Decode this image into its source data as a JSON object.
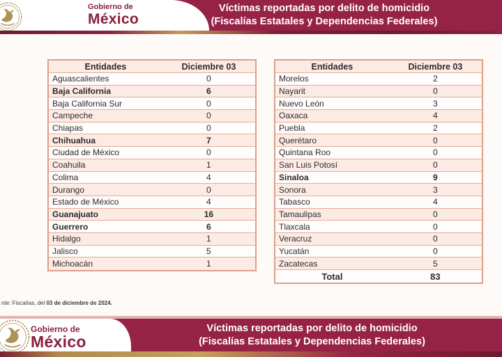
{
  "banner": {
    "logo_line1": "Gobierno de",
    "logo_line2": "México",
    "title_line1": "Víctimas reportadas por delito de homicidio",
    "title_line2": "(Fiscalías Estatales y Dependencias Federales)"
  },
  "table_headers": {
    "entity": "Entidades",
    "date": "Diciembre 03"
  },
  "left_table": {
    "rows": [
      {
        "name": "Aguascalientes",
        "value": "0",
        "bold": false
      },
      {
        "name": "Baja California",
        "value": "6",
        "bold": true
      },
      {
        "name": "Baja California Sur",
        "value": "0",
        "bold": false
      },
      {
        "name": "Campeche",
        "value": "0",
        "bold": false
      },
      {
        "name": "Chiapas",
        "value": "0",
        "bold": false
      },
      {
        "name": "Chihuahua",
        "value": "7",
        "bold": true
      },
      {
        "name": "Ciudad de México",
        "value": "0",
        "bold": false
      },
      {
        "name": "Coahuila",
        "value": "1",
        "bold": false
      },
      {
        "name": "Colima",
        "value": "4",
        "bold": false
      },
      {
        "name": "Durango",
        "value": "0",
        "bold": false
      },
      {
        "name": "Estado de México",
        "value": "4",
        "bold": false
      },
      {
        "name": "Guanajuato",
        "value": "16",
        "bold": true
      },
      {
        "name": "Guerrero",
        "value": "6",
        "bold": true
      },
      {
        "name": "Hidalgo",
        "value": "1",
        "bold": false
      },
      {
        "name": "Jalisco",
        "value": "5",
        "bold": false
      },
      {
        "name": "Michoacán",
        "value": "1",
        "bold": false
      }
    ]
  },
  "right_table": {
    "rows": [
      {
        "name": "Morelos",
        "value": "2",
        "bold": false
      },
      {
        "name": "Nayarit",
        "value": "0",
        "bold": false
      },
      {
        "name": "Nuevo León",
        "value": "3",
        "bold": false
      },
      {
        "name": "Oaxaca",
        "value": "4",
        "bold": false
      },
      {
        "name": "Puebla",
        "value": "2",
        "bold": false
      },
      {
        "name": "Querétaro",
        "value": "0",
        "bold": false
      },
      {
        "name": "Quintana Roo",
        "value": "0",
        "bold": false
      },
      {
        "name": "San Luis Potosí",
        "value": "0",
        "bold": false
      },
      {
        "name": "Sinaloa",
        "value": "9",
        "bold": true
      },
      {
        "name": "Sonora",
        "value": "3",
        "bold": false
      },
      {
        "name": "Tabasco",
        "value": "4",
        "bold": false
      },
      {
        "name": "Tamaulipas",
        "value": "0",
        "bold": false
      },
      {
        "name": "Tlaxcala",
        "value": "0",
        "bold": false
      },
      {
        "name": "Veracruz",
        "value": "0",
        "bold": false
      },
      {
        "name": "Yucatán",
        "value": "0",
        "bold": false
      },
      {
        "name": "Zacatecas",
        "value": "5",
        "bold": false
      }
    ],
    "total_label": "Total",
    "total_value": "83"
  },
  "footnote": {
    "prefix": "nte: Fiscalías, del ",
    "date_bold": "03 de diciembre de 2024."
  },
  "colors": {
    "bar_maroon": "#962346",
    "logo_maroon": "#8b1f3e",
    "row_pink": "#fcebe4",
    "border_salmon": "#dd9f89",
    "strip_gold": "#c39a58",
    "text": "#2d2a2b"
  }
}
